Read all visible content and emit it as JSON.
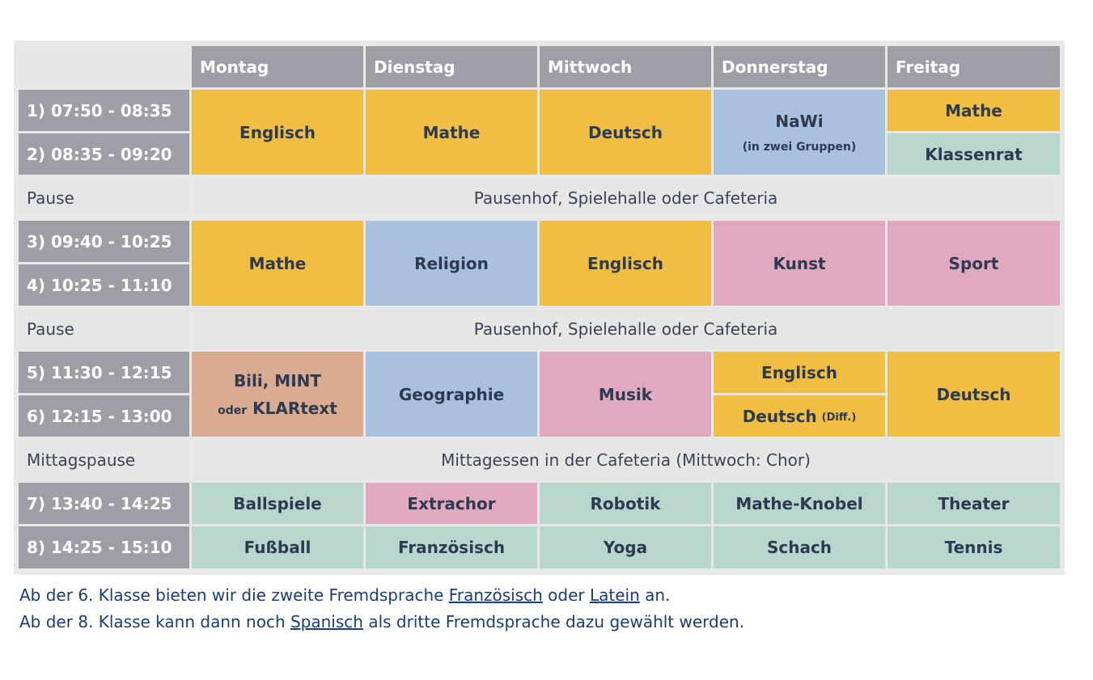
{
  "days": [
    "Montag",
    "Dienstag",
    "Mittwoch",
    "Donnerstag",
    "Freitag"
  ],
  "times": [
    "1) 07:50 - 08:35",
    "2) 08:35 - 09:20",
    "3) 09:40 - 10:25",
    "4) 10:25 - 11:10",
    "5) 11:30 - 12:15",
    "6) 12:15 - 13:00",
    "7) 13:40 - 14:25",
    "8) 14:25 - 15:10"
  ],
  "breaks": [
    {
      "label": "Pause",
      "text": "Pausenhof, Spielehalle oder Cafeteria"
    },
    {
      "label": "Pause",
      "text": "Pausenhof, Spielehalle oder Cafeteria"
    },
    {
      "label": "Mittagspause",
      "text": "Mittagessen in der Cafeteria (Mittwoch: Chor)"
    }
  ],
  "block1": {
    "montag": "Englisch",
    "dienstag": "Mathe",
    "mittwoch": "Deutsch",
    "donnerstag": "NaWi",
    "donnerstag_note": "(in zwei Gruppen)",
    "freitag_1": "Mathe",
    "freitag_2": "Klassenrat"
  },
  "block2": {
    "montag": "Mathe",
    "dienstag": "Religion",
    "mittwoch": "Englisch",
    "donnerstag": "Kunst",
    "freitag": "Sport"
  },
  "block3": {
    "montag_line1": "Bili, MINT",
    "montag_oder": "oder",
    "montag_line2": "KLARtext",
    "dienstag": "Geographie",
    "mittwoch": "Musik",
    "donnerstag_1": "Englisch",
    "donnerstag_2": "Deutsch",
    "donnerstag_2_note": "(Diff.)",
    "freitag": "Deutsch"
  },
  "block4": {
    "row7": [
      "Ballspiele",
      "Extrachor",
      "Robotik",
      "Mathe-Knobel",
      "Theater"
    ],
    "row8": [
      "Fußball",
      "Französisch",
      "Yoga",
      "Schach",
      "Tennis"
    ]
  },
  "notes": {
    "line1_pre": "Ab der 6. Klasse bieten wir die zweite Fremdsprache ",
    "line1_link1": "Französisch",
    "line1_mid": " oder ",
    "line1_link2": "Latein",
    "line1_post": " an.",
    "line2_pre": "Ab der 8. Klasse kann dann noch ",
    "line2_link": "Spanisch",
    "line2_post": " als dritte Fremdsprache dazu gewählt werden."
  },
  "colors": {
    "header": "#9d9ea6",
    "yellow": "#f0be42",
    "blue": "#a8c1dc",
    "pink": "#e1a9c0",
    "mint": "#b7d7ce",
    "peach": "#d9ab91",
    "pause": "#e6e6e6",
    "link": "#163e7b"
  }
}
